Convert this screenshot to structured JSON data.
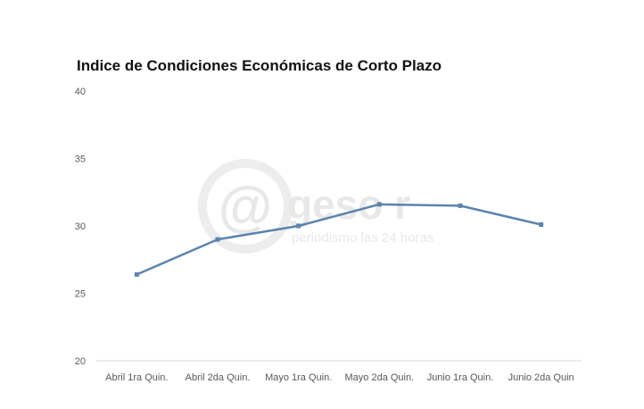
{
  "chart_data": {
    "type": "line",
    "title": "Indice de Condiciones Económicas de Corto Plazo",
    "categories": [
      "Abril 1ra Quin.",
      "Abril 2da Quin.",
      "Mayo 1ra Quin.",
      "Mayo 2da Quin.",
      "Junio 1ra Quin.",
      "Junio 2da Quin"
    ],
    "series": [
      {
        "values": [
          26.4,
          29.0,
          30.0,
          31.6,
          31.5,
          30.1
        ]
      }
    ],
    "ylim": [
      20,
      40
    ],
    "yticks": [
      20,
      25,
      30,
      35,
      40
    ],
    "grid": false,
    "legend": "none"
  },
  "colors": {
    "series": "#5b84ad",
    "axis": "#d9d9d9"
  },
  "watermark": {
    "symbol": "@",
    "brand": "geso r",
    "tagline": "periodismo las 24 horas"
  }
}
